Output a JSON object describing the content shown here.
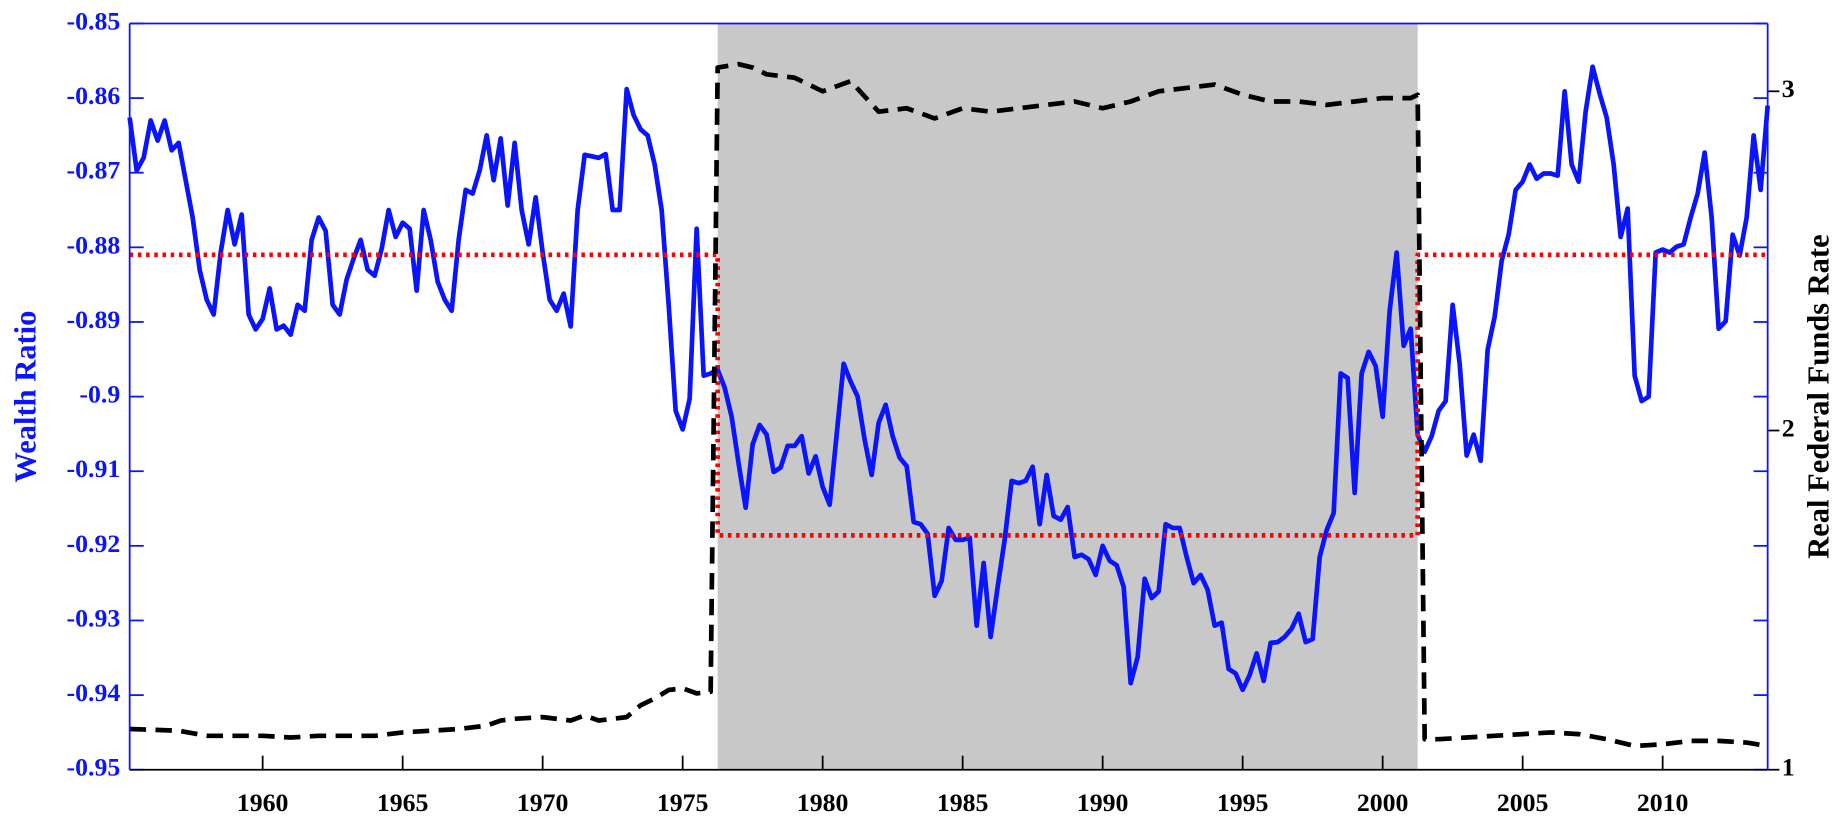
{
  "chart_data": {
    "type": "line",
    "ylabel": "Wealth Ratio",
    "y2label": "Real Federal Funds Rate",
    "xlim": [
      1955.25,
      2013.75
    ],
    "xticks": [
      1960,
      1965,
      1970,
      1975,
      1980,
      1985,
      1990,
      1995,
      2000,
      2005,
      2010
    ],
    "ylim": [
      -0.95,
      -0.85
    ],
    "yticks": [
      -0.95,
      -0.94,
      -0.93,
      -0.92,
      -0.91,
      -0.9,
      -0.89,
      -0.88,
      -0.87,
      -0.86,
      -0.85
    ],
    "y2lim": [
      1,
      3.2
    ],
    "y2ticks": [
      1,
      2,
      3
    ],
    "shaded_region": [
      1976.25,
      2001.25
    ],
    "shade_color": "#c8c8c8",
    "series": [
      {
        "color": "#0a14ff",
        "style": "solid",
        "x": [
          1955.25,
          1955.5,
          1955.75,
          1956,
          1956.25,
          1956.5,
          1956.75,
          1957,
          1957.5,
          1957.75,
          1958,
          1958.25,
          1958.5,
          1958.75,
          1959,
          1959.25,
          1959.5,
          1959.75,
          1960,
          1960.25,
          1960.5,
          1960.75,
          1961,
          1961.25,
          1961.5,
          1961.75,
          1962,
          1962.25,
          1962.5,
          1962.75,
          1963,
          1963.25,
          1963.5,
          1963.75,
          1964,
          1964.25,
          1964.5,
          1964.75,
          1965,
          1965.25,
          1965.5,
          1965.75,
          1966,
          1966.25,
          1966.5,
          1966.75,
          1967,
          1967.25,
          1967.5,
          1967.75,
          1968,
          1968.25,
          1968.5,
          1968.75,
          1969,
          1969.25,
          1969.5,
          1969.75,
          1970,
          1970.25,
          1970.5,
          1970.75,
          1971,
          1971.25,
          1971.5,
          1971.75,
          1972,
          1972.25,
          1972.5,
          1972.75,
          1973,
          1973.25,
          1973.5,
          1973.75,
          1974,
          1974.25,
          1974.5,
          1974.75,
          1975,
          1975.25,
          1975.5,
          1975.75,
          1976,
          1976.25,
          1976.5,
          1976.75,
          1977,
          1977.25,
          1977.5,
          1977.75,
          1978,
          1978.25,
          1978.5,
          1978.75,
          1979,
          1979.25,
          1979.5,
          1979.75,
          1980,
          1980.25,
          1980.5,
          1980.75,
          1981,
          1981.25,
          1981.5,
          1981.75,
          1982,
          1982.25,
          1982.5,
          1982.75,
          1983,
          1983.25,
          1983.5,
          1983.75,
          1984,
          1984.25,
          1984.5,
          1984.75,
          1985,
          1985.25,
          1985.5,
          1985.75,
          1986,
          1986.25,
          1986.5,
          1986.75,
          1987,
          1987.25,
          1987.5,
          1987.75,
          1988,
          1988.25,
          1988.5,
          1988.75,
          1989,
          1989.25,
          1989.5,
          1989.75,
          1990,
          1990.25,
          1990.5,
          1990.75,
          1991,
          1991.25,
          1991.5,
          1991.75,
          1992,
          1992.25,
          1992.5,
          1992.75,
          1993,
          1993.25,
          1993.5,
          1993.75,
          1994,
          1994.25,
          1994.5,
          1994.75,
          1995,
          1995.25,
          1995.5,
          1995.75,
          1996,
          1996.25,
          1996.5,
          1996.75,
          1997,
          1997.25,
          1997.5,
          1997.75,
          1998,
          1998.25,
          1998.5,
          1998.75,
          1999,
          1999.25,
          1999.5,
          1999.75,
          2000,
          2000.25,
          2000.5,
          2000.75,
          2001,
          2001.25,
          2001.5,
          2001.75,
          2002,
          2002.25,
          2002.5,
          2002.75,
          2003,
          2003.25,
          2003.5,
          2003.75,
          2004,
          2004.25,
          2004.5,
          2004.75,
          2005,
          2005.25,
          2005.5,
          2005.75,
          2006,
          2006.25,
          2006.5,
          2006.75,
          2007,
          2007.25,
          2007.5,
          2007.75,
          2008,
          2008.25,
          2008.5,
          2008.75,
          2009,
          2009.25,
          2009.5,
          2009.75,
          2010,
          2010.25,
          2010.5,
          2010.75,
          2011,
          2011.25,
          2011.5,
          2011.75,
          2012,
          2012.25,
          2012.5,
          2012.75,
          2013,
          2013.25,
          2013.5,
          2013.75
        ],
        "values": [
          -0.8626,
          -0.8697,
          -0.868,
          -0.863,
          -0.8657,
          -0.863,
          -0.867,
          -0.866,
          -0.876,
          -0.883,
          -0.887,
          -0.889,
          -0.8807,
          -0.875,
          -0.8796,
          -0.8756,
          -0.889,
          -0.891,
          -0.8896,
          -0.8855,
          -0.891,
          -0.8905,
          -0.8917,
          -0.8877,
          -0.8885,
          -0.879,
          -0.876,
          -0.8778,
          -0.8877,
          -0.889,
          -0.8843,
          -0.8815,
          -0.879,
          -0.883,
          -0.8838,
          -0.8802,
          -0.875,
          -0.8786,
          -0.8767,
          -0.8775,
          -0.8858,
          -0.875,
          -0.879,
          -0.8846,
          -0.887,
          -0.8885,
          -0.879,
          -0.8723,
          -0.8728,
          -0.8697,
          -0.865,
          -0.871,
          -0.8654,
          -0.8744,
          -0.866,
          -0.875,
          -0.8796,
          -0.8733,
          -0.8807,
          -0.887,
          -0.8885,
          -0.8862,
          -0.8906,
          -0.875,
          -0.8676,
          -0.8678,
          -0.868,
          -0.8675,
          -0.875,
          -0.875,
          -0.8588,
          -0.8623,
          -0.8642,
          -0.865,
          -0.8689,
          -0.875,
          -0.8877,
          -0.9019,
          -0.9044,
          -0.9003,
          -0.8775,
          -0.8972,
          -0.8969,
          -0.8964,
          -0.8988,
          -0.9027,
          -0.909,
          -0.9149,
          -0.9064,
          -0.9038,
          -0.9051,
          -0.9101,
          -0.9095,
          -0.9066,
          -0.9066,
          -0.9053,
          -0.9103,
          -0.908,
          -0.9121,
          -0.9145,
          -0.9051,
          -0.8956,
          -0.898,
          -0.9,
          -0.9058,
          -0.9105,
          -0.9035,
          -0.9011,
          -0.9053,
          -0.9082,
          -0.9093,
          -0.9168,
          -0.9171,
          -0.9184,
          -0.9267,
          -0.9247,
          -0.9176,
          -0.9192,
          -0.9192,
          -0.9189,
          -0.9307,
          -0.9223,
          -0.9322,
          -0.9255,
          -0.9192,
          -0.9113,
          -0.9116,
          -0.9113,
          -0.9094,
          -0.9171,
          -0.9105,
          -0.916,
          -0.9165,
          -0.9148,
          -0.9215,
          -0.9212,
          -0.9218,
          -0.9239,
          -0.92,
          -0.922,
          -0.9226,
          -0.9255,
          -0.9384,
          -0.9349,
          -0.9244,
          -0.927,
          -0.9261,
          -0.9171,
          -0.9176,
          -0.9176,
          -0.9215,
          -0.925,
          -0.9239,
          -0.9259,
          -0.9307,
          -0.9303,
          -0.9365,
          -0.9371,
          -0.9393,
          -0.9373,
          -0.9344,
          -0.9381,
          -0.933,
          -0.9329,
          -0.9322,
          -0.9311,
          -0.9291,
          -0.9329,
          -0.9325,
          -0.9215,
          -0.9179,
          -0.9156,
          -0.8969,
          -0.8975,
          -0.9129,
          -0.8969,
          -0.894,
          -0.8959,
          -0.9027,
          -0.8885,
          -0.8807,
          -0.8932,
          -0.8909,
          -0.9051,
          -0.9074,
          -0.9053,
          -0.9019,
          -0.9006,
          -0.8877,
          -0.8956,
          -0.9079,
          -0.9051,
          -0.9086,
          -0.8937,
          -0.8893,
          -0.8818,
          -0.8783,
          -0.8723,
          -0.8712,
          -0.8689,
          -0.8708,
          -0.8701,
          -0.8701,
          -0.8704,
          -0.8591,
          -0.8689,
          -0.8712,
          -0.8618,
          -0.8558,
          -0.8594,
          -0.8626,
          -0.8689,
          -0.8786,
          -0.8748,
          -0.8972,
          -0.9006,
          -0.9,
          -0.8807,
          -0.8803,
          -0.8807,
          -0.8799,
          -0.8796,
          -0.876,
          -0.8728,
          -0.8673,
          -0.876,
          -0.8909,
          -0.8899,
          -0.8783,
          -0.8811,
          -0.876,
          -0.865,
          -0.8723,
          -0.861
        ]
      },
      {
        "color": "#ff0000",
        "style": "dotted",
        "x": [
          1955.25,
          1976.25,
          1976.25,
          2001.25,
          2001.25,
          2013.75
        ],
        "values": [
          -0.881,
          -0.881,
          -0.9186,
          -0.9186,
          -0.881,
          -0.881
        ]
      },
      {
        "color": "#000000",
        "style": "dashed",
        "axis": "y2",
        "x": [
          1955.25,
          1957,
          1958,
          1960,
          1961,
          1962,
          1964,
          1965,
          1966,
          1967,
          1968,
          1968.5,
          1969,
          1970,
          1971,
          1971.5,
          1972,
          1973,
          1973.5,
          1974,
          1974.5,
          1975,
          1975.5,
          1976,
          1976.25,
          1977,
          1977.5,
          1978,
          1979,
          1980,
          1981,
          1982,
          1983,
          1984,
          1985,
          1986,
          1987,
          1988,
          1989,
          1990,
          1991,
          1992,
          1993,
          1994,
          1995,
          1996,
          1997,
          1998,
          1999,
          2000,
          2001,
          2001.25,
          2001.5,
          2002,
          2003,
          2004,
          2005,
          2006,
          2007,
          2008,
          2009,
          2010,
          2011,
          2012,
          2013,
          2013.75
        ],
        "values": [
          1.12,
          1.115,
          1.1,
          1.1,
          1.095,
          1.1,
          1.1,
          1.11,
          1.115,
          1.12,
          1.13,
          1.145,
          1.15,
          1.155,
          1.145,
          1.16,
          1.145,
          1.155,
          1.19,
          1.21,
          1.235,
          1.24,
          1.225,
          1.23,
          3.07,
          3.08,
          3.07,
          3.05,
          3.04,
          3.0,
          3.03,
          2.94,
          2.95,
          2.92,
          2.95,
          2.94,
          2.95,
          2.96,
          2.97,
          2.95,
          2.97,
          3.0,
          3.01,
          3.02,
          2.99,
          2.97,
          2.97,
          2.96,
          2.97,
          2.98,
          2.98,
          2.99,
          1.09,
          1.09,
          1.095,
          1.1,
          1.105,
          1.11,
          1.105,
          1.09,
          1.07,
          1.075,
          1.085,
          1.085,
          1.08,
          1.07
        ]
      }
    ]
  }
}
